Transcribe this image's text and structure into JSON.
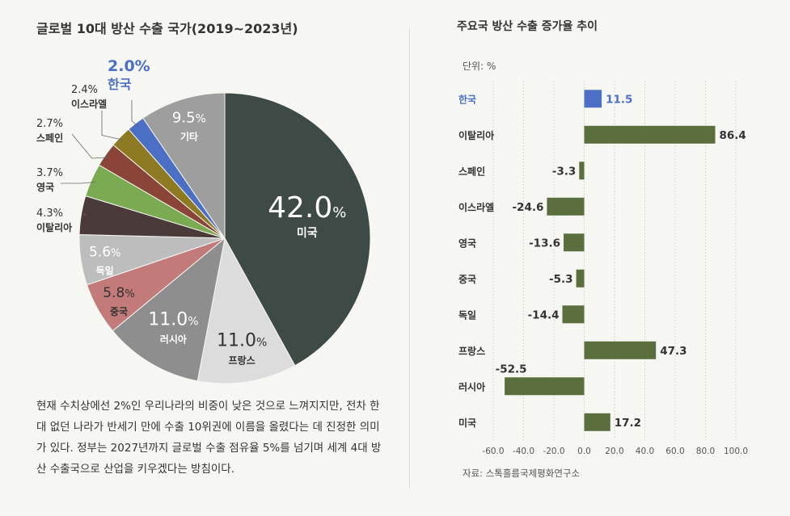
{
  "colors": {
    "korea": "#4a6fc4",
    "bar_default": "#5a6e3e",
    "grid": "#d7d7d0"
  },
  "pie_chart": {
    "title": "글로벌 10대 방산 수출 국가(2019~2023년)",
    "chart_data": {
      "type": "pie",
      "title": "글로벌 10대 방산 수출 국가(2019~2023년)",
      "unit": "%",
      "slices": [
        {
          "label": "미국",
          "value": 42.0,
          "value_text": "42.0",
          "color": "#3d4a46"
        },
        {
          "label": "프랑스",
          "value": 11.0,
          "value_text": "11.0",
          "color": "#dcdcdc"
        },
        {
          "label": "러시아",
          "value": 11.0,
          "value_text": "11.0",
          "color": "#8e8e8e"
        },
        {
          "label": "중국",
          "value": 5.8,
          "value_text": "5.8",
          "color": "#c37b7a"
        },
        {
          "label": "독일",
          "value": 5.6,
          "value_text": "5.6",
          "color": "#bdbdbd"
        },
        {
          "label": "이탈리아",
          "value": 4.3,
          "value_text": "4.3",
          "color": "#4a3a3a"
        },
        {
          "label": "영국",
          "value": 3.7,
          "value_text": "3.7",
          "color": "#7aaa52"
        },
        {
          "label": "스페인",
          "value": 2.7,
          "value_text": "2.7",
          "color": "#8a4538"
        },
        {
          "label": "이스라엘",
          "value": 2.4,
          "value_text": "2.4",
          "color": "#8d7a22"
        },
        {
          "label": "한국",
          "value": 2.0,
          "value_text": "2.0",
          "color": "#4a6fc4"
        },
        {
          "label": "기타",
          "value": 9.5,
          "value_text": "9.5",
          "color": "#9e9e9e"
        }
      ]
    }
  },
  "description": "현재 수치상에선 2%인 우리나라의 비중이 낮은 것으로 느껴지지만, 전차 한 대 없던 나라가 반세기 만에 수출 10위권에 이름을 올렸다는 데 진정한 의미가 있다. 정부는 2027년까지 글로벌 수출 점유율 5%를 넘기며 세계 4대 방산 수출국으로 산업을 키우겠다는 방침이다.",
  "bar_chart": {
    "title": "주요국 방산 수출 증가율 추이",
    "unit_label": "단위: %",
    "source": "자료: 스톡홀름국제평화연구소",
    "chart_data": {
      "type": "bar",
      "orientation": "horizontal",
      "title": "주요국 방산 수출 증가율 추이",
      "categories": [
        "한국",
        "이탈리아",
        "스페인",
        "이스라엘",
        "영국",
        "중국",
        "독일",
        "프랑스",
        "러시아",
        "미국"
      ],
      "values": [
        11.5,
        86.4,
        -3.3,
        -24.6,
        -13.6,
        -5.3,
        -14.4,
        47.3,
        -52.5,
        17.2
      ],
      "value_labels": [
        "11.5",
        "86.4",
        "-3.3",
        "-24.6",
        "-13.6",
        "-5.3",
        "-14.4",
        "47.3",
        "-52.5",
        "17.2"
      ],
      "highlight": "한국",
      "xlim": [
        -60,
        100
      ],
      "xticks": [
        "-60.0",
        "-40.0",
        "-20.0",
        "0.0",
        "20.0",
        "40.0",
        "60.0",
        "80.0",
        "100.0"
      ],
      "grid": true
    }
  }
}
